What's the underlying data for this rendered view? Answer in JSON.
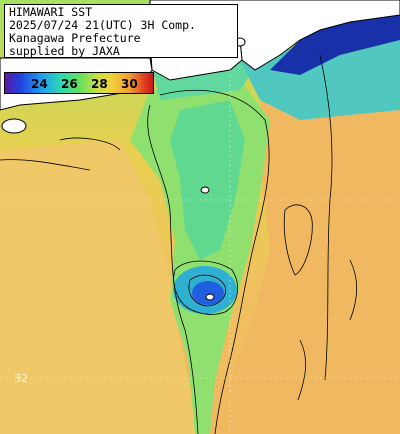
{
  "info": {
    "line1": "HIMAWARI SST",
    "line2": "2025/07/24 21(UTC) 3H Comp.",
    "line3": "Kanagawa Prefecture",
    "line4": "supplied by JAXA"
  },
  "legend": {
    "ticks": [
      "24",
      "26",
      "28",
      "30"
    ]
  },
  "grid_labels": {
    "lat": "32"
  },
  "colors": {
    "warm": "#f0c060",
    "land": "#ffffff",
    "cold": "#2040d0",
    "mid": "#60d8a0"
  }
}
